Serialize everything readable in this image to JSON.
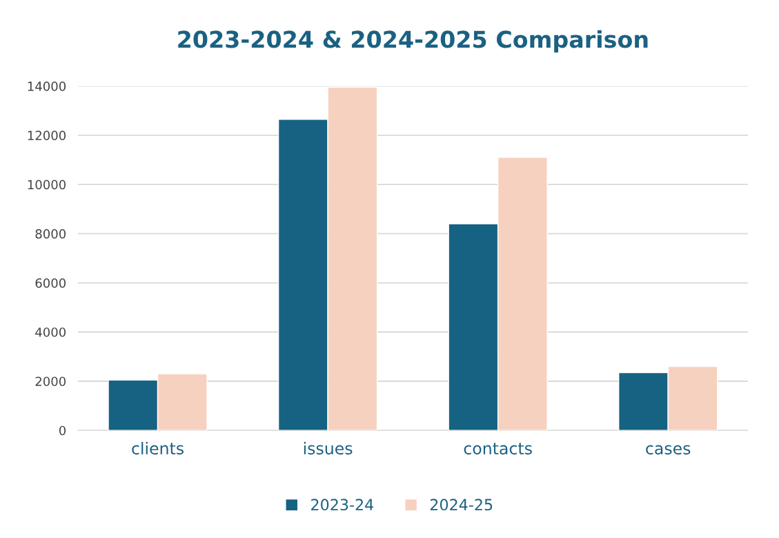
{
  "chart_data": {
    "type": "bar",
    "title": "2023-2024 & 2024-2025 Comparison",
    "categories": [
      "clients",
      "issues",
      "contacts",
      "cases"
    ],
    "series": [
      {
        "name": "2023-24",
        "color": "#166282",
        "values": [
          2050,
          12650,
          8400,
          2350
        ]
      },
      {
        "name": "2024-25",
        "color": "#f7d1bf",
        "values": [
          2300,
          13950,
          11100,
          2600
        ]
      }
    ],
    "ylim": [
      0,
      14000
    ],
    "yticks": [
      0,
      2000,
      4000,
      6000,
      8000,
      10000,
      12000,
      14000
    ],
    "grid": "y",
    "legend": "bottom"
  }
}
